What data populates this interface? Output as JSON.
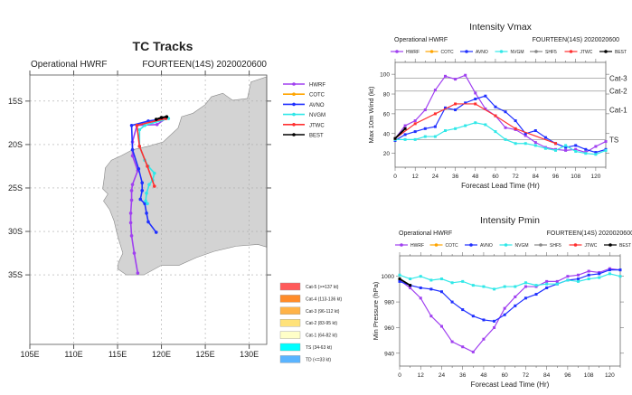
{
  "colors": {
    "HWRF": "#a040f0",
    "COTC": "#ffa500",
    "AVNO": "#2030ff",
    "NVGM": "#30e8e8",
    "SHF5": "#888888",
    "JTWC": "#ff3030",
    "BEST": "#000000",
    "land": "#d3d3d3"
  },
  "chart_data": [
    {
      "type": "map-tracks",
      "title": "TC Tracks",
      "subtitle_left": "Operational HWRF",
      "subtitle_right": "FOURTEEN(14S) 2020020600",
      "lon_range": [
        105,
        132
      ],
      "lat_range": [
        -12,
        -43
      ],
      "lon_ticks": [
        "105E",
        "110E",
        "115E",
        "120E",
        "125E",
        "130E"
      ],
      "lat_ticks": [
        "15S",
        "20S",
        "25S",
        "30S",
        "35S"
      ],
      "grid": true,
      "legend": [
        "HWRF",
        "COTC",
        "AVNO",
        "NVGM",
        "JTWC",
        "BEST"
      ],
      "tracks": [
        {
          "name": "HWRF",
          "points": [
            [
              120.5,
              -17.0
            ],
            [
              119.5,
              -17.7
            ],
            [
              117.2,
              -17.8
            ],
            [
              116.7,
              -19.7
            ],
            [
              116.7,
              -21.3
            ],
            [
              117.3,
              -23.0
            ],
            [
              116.7,
              -24.6
            ],
            [
              116.6,
              -25.3
            ],
            [
              116.6,
              -26.4
            ],
            [
              116.5,
              -27.9
            ],
            [
              116.5,
              -29.0
            ],
            [
              116.6,
              -30.5
            ],
            [
              116.9,
              -32.5
            ],
            [
              117.3,
              -34.8
            ]
          ]
        },
        {
          "name": "AVNO",
          "points": [
            [
              120.5,
              -17.0
            ],
            [
              118.5,
              -17.3
            ],
            [
              116.6,
              -17.8
            ],
            [
              116.7,
              -20.6
            ],
            [
              117.4,
              -22.8
            ],
            [
              117.8,
              -24.4
            ],
            [
              117.8,
              -25.3
            ],
            [
              117.6,
              -26.3
            ],
            [
              118.1,
              -26.8
            ],
            [
              118.3,
              -27.9
            ],
            [
              118.5,
              -28.9
            ],
            [
              119.4,
              -30.1
            ]
          ]
        },
        {
          "name": "NVGM",
          "points": [
            [
              120.8,
              -17.0
            ],
            [
              118.1,
              -17.8
            ],
            [
              117.5,
              -18.3
            ],
            [
              117.5,
              -20.2
            ],
            [
              118.1,
              -21.8
            ],
            [
              118.5,
              -22.5
            ],
            [
              119.2,
              -23.3
            ],
            [
              119.0,
              -24.1
            ],
            [
              118.6,
              -24.6
            ],
            [
              118.3,
              -25.6
            ],
            [
              118.2,
              -26.5
            ],
            [
              118.4,
              -26.8
            ]
          ]
        },
        {
          "name": "JTWC",
          "points": [
            [
              120.5,
              -17.0
            ],
            [
              117.2,
              -17.8
            ],
            [
              117.5,
              -20.2
            ],
            [
              118.4,
              -22.5
            ],
            [
              119.2,
              -24.8
            ]
          ]
        },
        {
          "name": "BEST",
          "points": [
            [
              120.6,
              -16.8
            ],
            [
              120.0,
              -16.9
            ],
            [
              119.4,
              -17.1
            ]
          ]
        }
      ],
      "intensity_legend": [
        {
          "label": "Cat-5 (>=137 kt)",
          "color": "#ff5a5a"
        },
        {
          "label": "Cat-4 (113-136 kt)",
          "color": "#ff8c2a"
        },
        {
          "label": "Cat-3 (96-112 kt)",
          "color": "#ffb347"
        },
        {
          "label": "Cat-2 (83-95 kt)",
          "color": "#ffe27a"
        },
        {
          "label": "Cat-1 (64-82 kt)",
          "color": "#ffffc8"
        },
        {
          "label": "TS (34-63 kt)",
          "color": "#00ffff"
        },
        {
          "label": "TD (<=33 kt)",
          "color": "#5ab4ff"
        }
      ]
    },
    {
      "type": "line",
      "title": "Intensity Vmax",
      "subtitle_left": "Operational HWRF",
      "subtitle_right": "FOURTEEN(14S) 2020020600",
      "xlabel": "Forecast Lead Time (Hr)",
      "ylabel": "Max 10m Wind (kt)",
      "xlim": [
        0,
        126
      ],
      "ylim": [
        6,
        112
      ],
      "xticks": [
        0,
        12,
        24,
        36,
        48,
        60,
        72,
        84,
        96,
        108,
        120
      ],
      "yticks": [
        20,
        40,
        60,
        80,
        100
      ],
      "legend": [
        "HWRF",
        "COTC",
        "AVNO",
        "NVGM",
        "SHF5",
        "JTWC",
        "BEST"
      ],
      "reference_lines": [
        {
          "label": "Cat-3",
          "value": 96
        },
        {
          "label": "Cat-2",
          "value": 83
        },
        {
          "label": "Cat-1",
          "value": 64
        },
        {
          "label": "TS",
          "value": 34
        }
      ],
      "series": [
        {
          "name": "HWRF",
          "x": [
            0,
            6,
            12,
            18,
            24,
            30,
            36,
            42,
            48,
            54,
            60,
            66,
            72,
            78,
            84,
            90,
            96,
            102,
            108,
            114,
            120,
            126
          ],
          "values": [
            35,
            48,
            53,
            64,
            84,
            98,
            95,
            99,
            81,
            65,
            58,
            46,
            44,
            38,
            31,
            26,
            24,
            23,
            24,
            21,
            27,
            32
          ]
        },
        {
          "name": "AVNO",
          "x": [
            0,
            6,
            12,
            18,
            24,
            30,
            36,
            42,
            48,
            54,
            60,
            66,
            72,
            78,
            84,
            90,
            96,
            102,
            108,
            114,
            120,
            126
          ],
          "values": [
            33,
            39,
            42,
            45,
            47,
            66,
            64,
            71,
            75,
            78,
            67,
            62,
            53,
            40,
            43,
            36,
            30,
            26,
            28,
            24,
            21,
            24
          ]
        },
        {
          "name": "NVGM",
          "x": [
            0,
            6,
            12,
            18,
            24,
            30,
            36,
            42,
            48,
            54,
            60,
            66,
            72,
            78,
            84,
            90,
            96,
            102,
            108,
            114,
            120,
            126
          ],
          "values": [
            34,
            34,
            34,
            37,
            37,
            43,
            45,
            48,
            51,
            49,
            42,
            34,
            30,
            30,
            28,
            25,
            23,
            28,
            22,
            20,
            19,
            23
          ]
        },
        {
          "name": "JTWC",
          "x": [
            0,
            12,
            24,
            36,
            48,
            60,
            72,
            96
          ],
          "values": [
            35,
            50,
            60,
            70,
            70,
            58,
            45,
            30
          ]
        },
        {
          "name": "BEST",
          "x": [
            0,
            6
          ],
          "values": [
            35,
            45
          ]
        }
      ]
    },
    {
      "type": "line",
      "title": "Intensity Pmin",
      "subtitle_left": "Operational HWRF",
      "subtitle_right": "FOURTEEN(14S) 2020020600",
      "xlabel": "Forecast Lead Time (Hr)",
      "ylabel": "Min Pressure (hPa)",
      "xlim": [
        0,
        126
      ],
      "ylim": [
        930,
        1016
      ],
      "xticks": [
        0,
        12,
        24,
        36,
        48,
        60,
        72,
        84,
        96,
        108,
        120
      ],
      "yticks": [
        940,
        960,
        980,
        1000
      ],
      "legend": [
        "HWRF",
        "COTC",
        "AVNO",
        "NVGM",
        "SHF5",
        "JTWC",
        "BEST"
      ],
      "reference_lines": [],
      "series": [
        {
          "name": "HWRF",
          "x": [
            0,
            6,
            12,
            18,
            24,
            30,
            36,
            42,
            48,
            54,
            60,
            66,
            72,
            78,
            84,
            90,
            96,
            102,
            108,
            114,
            120,
            126
          ],
          "values": [
            997,
            991,
            983,
            969,
            961,
            949,
            945,
            941,
            951,
            960,
            975,
            984,
            992,
            992,
            996,
            996,
            1000,
            1001,
            1004,
            1003,
            1006,
            1005
          ]
        },
        {
          "name": "AVNO",
          "x": [
            0,
            6,
            12,
            18,
            24,
            30,
            36,
            42,
            48,
            54,
            60,
            66,
            72,
            78,
            84,
            90,
            96,
            102,
            108,
            114,
            120,
            126
          ],
          "values": [
            996,
            993,
            991,
            990,
            988,
            980,
            974,
            969,
            966,
            965,
            970,
            977,
            983,
            986,
            991,
            994,
            997,
            998,
            1001,
            1002,
            1005,
            1005
          ]
        },
        {
          "name": "NVGM",
          "x": [
            0,
            6,
            12,
            18,
            24,
            30,
            36,
            42,
            48,
            54,
            60,
            66,
            72,
            78,
            84,
            90,
            96,
            102,
            108,
            114,
            120,
            126
          ],
          "values": [
            1001,
            998,
            1000,
            997,
            998,
            995,
            996,
            993,
            992,
            990,
            992,
            992,
            995,
            993,
            994,
            994,
            997,
            996,
            998,
            999,
            1002,
            1000
          ]
        },
        {
          "name": "BEST",
          "x": [
            0,
            6
          ],
          "values": [
            998,
            993
          ]
        }
      ]
    }
  ]
}
